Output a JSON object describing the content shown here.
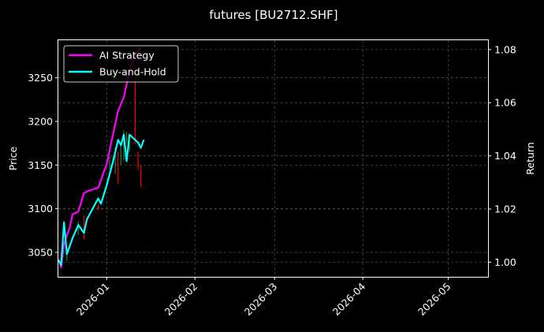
{
  "chart_data": {
    "type": "line",
    "title": "futures [BU2712.SHF]",
    "ylabel": "Price",
    "y2label": "Return",
    "xlim": [
      "2025-12-15",
      "2026-05-15"
    ],
    "ylim": [
      3022,
      3293
    ],
    "y2lim": [
      0.9945,
      1.0835
    ],
    "x_ticks": [
      "2026-01",
      "2026-02",
      "2026-03",
      "2026-04",
      "2026-05"
    ],
    "y_ticks": [
      3050,
      3100,
      3150,
      3200,
      3250
    ],
    "y2_ticks": [
      1.0,
      1.02,
      1.04,
      1.06,
      1.08
    ],
    "y2_tick_labels": [
      "1.00",
      "1.02",
      "1.04",
      "1.06",
      "1.08"
    ],
    "grid": true,
    "legend_position": "top-left",
    "colors": {
      "ai_strategy": "#ff00ff",
      "buy_and_hold": "#00ffff",
      "candle_up": "#2e7d32",
      "candle_down": "#ff0000",
      "grid": "#555555",
      "axes": "#ffffff"
    },
    "series": [
      {
        "name": "AI Strategy",
        "axis": "return",
        "x": [
          "2025-12-15",
          "2025-12-16",
          "2025-12-17",
          "2025-12-19",
          "2025-12-20",
          "2025-12-22",
          "2025-12-24",
          "2025-12-26",
          "2025-12-29",
          "2026-01-01",
          "2026-01-03",
          "2026-01-05",
          "2026-01-07",
          "2026-01-09",
          "2026-01-11",
          "2026-01-13"
        ],
        "values": [
          1.001,
          0.998,
          1.007,
          1.013,
          1.018,
          1.019,
          1.026,
          1.027,
          1.028,
          1.037,
          1.047,
          1.057,
          1.062,
          1.072,
          1.078,
          1.081
        ]
      },
      {
        "name": "Buy-and-Hold",
        "axis": "return",
        "x": [
          "2025-12-15",
          "2025-12-16",
          "2025-12-17",
          "2025-12-18",
          "2025-12-20",
          "2025-12-22",
          "2025-12-24",
          "2025-12-25",
          "2025-12-27",
          "2025-12-29",
          "2025-12-30",
          "2026-01-01",
          "2026-01-03",
          "2026-01-05",
          "2026-01-06",
          "2026-01-07",
          "2026-01-08",
          "2026-01-09",
          "2026-01-10",
          "2026-01-12",
          "2026-01-13",
          "2026-01-14"
        ],
        "values": [
          1.001,
          0.999,
          1.015,
          1.003,
          1.009,
          1.014,
          1.011,
          1.016,
          1.02,
          1.024,
          1.022,
          1.029,
          1.037,
          1.046,
          1.044,
          1.048,
          1.038,
          1.048,
          1.047,
          1.045,
          1.043,
          1.046
        ]
      }
    ],
    "candles": {
      "axis": "price",
      "x": [
        "2025-12-16",
        "2025-12-18",
        "2025-12-22",
        "2025-12-24",
        "2025-12-29",
        "2026-01-02",
        "2026-01-04",
        "2026-01-05",
        "2026-01-06",
        "2026-01-07",
        "2026-01-08",
        "2026-01-09",
        "2026-01-11",
        "2026-01-12",
        "2026-01-13"
      ],
      "low": [
        3035,
        3040,
        3070,
        3065,
        3098,
        3145,
        3140,
        3128,
        3150,
        3155,
        3175,
        3165,
        3175,
        3145,
        3125
      ],
      "high": [
        3050,
        3055,
        3085,
        3092,
        3104,
        3160,
        3170,
        3165,
        3175,
        3190,
        3188,
        3185,
        3265,
        3165,
        3150
      ],
      "direction": [
        "down",
        "up",
        "up",
        "down",
        "down",
        "up",
        "up",
        "down",
        "up",
        "up",
        "up",
        "up",
        "down",
        "down",
        "down"
      ]
    }
  }
}
